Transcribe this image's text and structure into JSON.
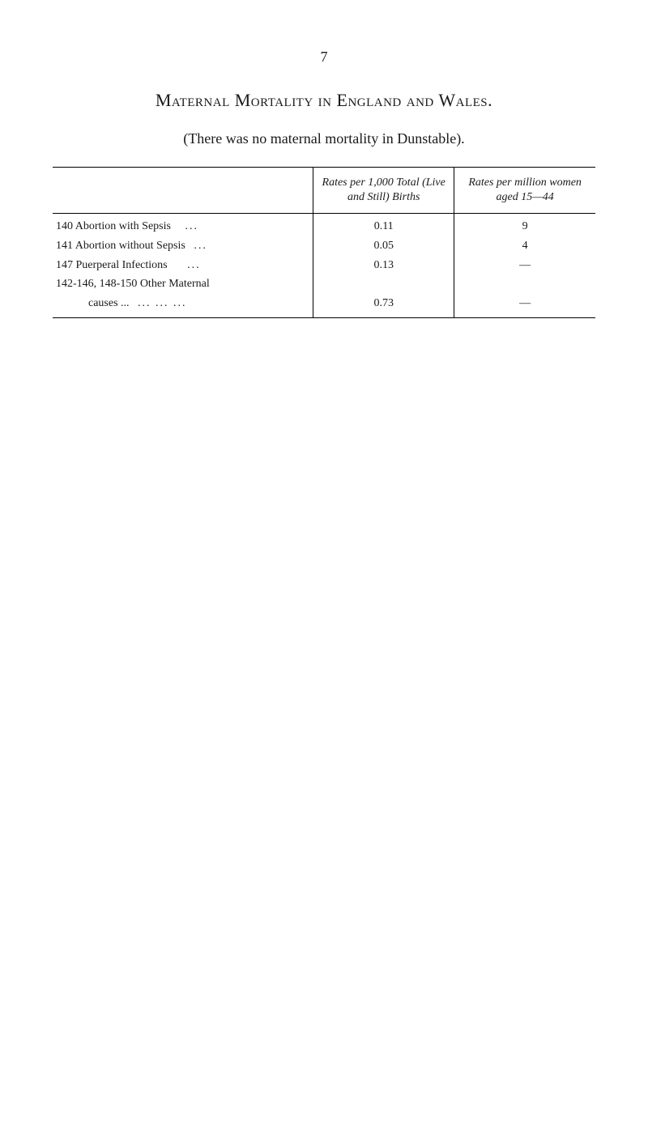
{
  "page_number": "7",
  "title": "Maternal Mortality in England and Wales.",
  "subtitle": "(There was no maternal mortality in Dunstable).",
  "table": {
    "columns": [
      "",
      "Rates per 1,000 Total (Live and Still) Births",
      "Rates per million women aged 15—44"
    ],
    "rows": [
      {
        "label": "140 Abortion with Sepsis",
        "dots": "...",
        "rate_per_1000": "0.11",
        "rate_per_million": "9",
        "indent": false
      },
      {
        "label": "141 Abortion without Sepsis",
        "dots": "...",
        "rate_per_1000": "0.05",
        "rate_per_million": "4",
        "indent": false
      },
      {
        "label": "147 Puerperal Infections",
        "dots": "...",
        "rate_per_1000": "0.13",
        "rate_per_million": "—",
        "indent": false
      },
      {
        "label": "142-146, 148-150 Other Maternal",
        "dots": "",
        "rate_per_1000": "",
        "rate_per_million": "",
        "indent": false
      },
      {
        "label": "causes ...",
        "dots": "...   ...   ...",
        "rate_per_1000": "0.73",
        "rate_per_million": "—",
        "indent": true
      }
    ]
  }
}
